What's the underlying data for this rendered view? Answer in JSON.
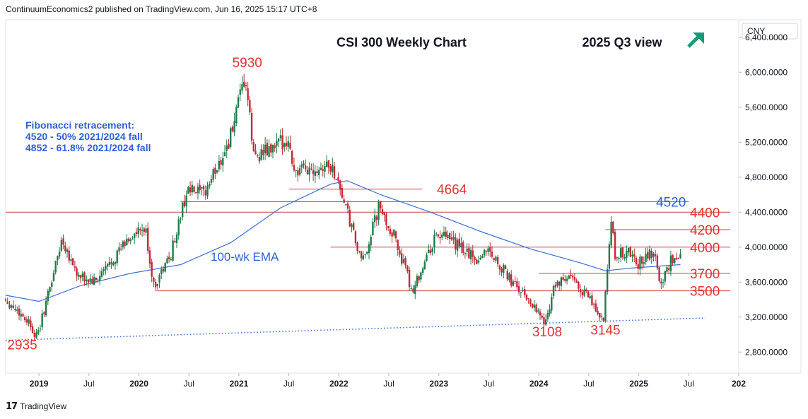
{
  "header": "ContinuumEconomics2 published on TradingView.com, Jun 16, 2025 15:17 UTC+8",
  "footer": {
    "brand": "TradingView"
  },
  "colors": {
    "up": "#1e7b4a",
    "down": "#c22a36",
    "ema": "#3d6fd6",
    "level_line": "#d13a45",
    "level_text": "#e0342f",
    "fib_text": "#2f5ed6",
    "trend": "#3d6fd6",
    "arrow": "#1a9a7a"
  },
  "chart_data": {
    "type": "candlestick",
    "title": "CSI 300 Weekly Chart",
    "subtitle": "2025 Q3 view",
    "currency": "CNY",
    "x_tick_labels": [
      "2019",
      "Jul",
      "2020",
      "Jul",
      "2021",
      "Jul",
      "2022",
      "Jul",
      "2023",
      "Jul",
      "2024",
      "Jul",
      "2025",
      "Jul",
      "202"
    ],
    "x_range": [
      "2018-09",
      "2026-01"
    ],
    "y_tick_labels": [
      "2,800.0000",
      "3,200.0000",
      "3,600.0000",
      "4,000.0000",
      "4,400.0000",
      "4,800.0000",
      "5,200.0000",
      "5,600.0000",
      "6,000.0000",
      "6,400.0000"
    ],
    "ylim": [
      2560,
      6600
    ],
    "price_path": [
      [
        "2018-09",
        3420
      ],
      [
        "2018-12",
        3150
      ],
      [
        "2019-01",
        2960
      ],
      [
        "2019-04",
        4100
      ],
      [
        "2019-06",
        3650
      ],
      [
        "2019-08",
        3600
      ],
      [
        "2019-12",
        4100
      ],
      [
        "2020-02",
        4200
      ],
      [
        "2020-03",
        3550
      ],
      [
        "2020-05",
        3900
      ],
      [
        "2020-07",
        4650
      ],
      [
        "2020-09",
        4600
      ],
      [
        "2020-12",
        5200
      ],
      [
        "2021-02",
        5930
      ],
      [
        "2021-03",
        5050
      ],
      [
        "2021-05",
        5100
      ],
      [
        "2021-07",
        5250
      ],
      [
        "2021-08",
        4850
      ],
      [
        "2021-10",
        4900
      ],
      [
        "2021-12",
        4950
      ],
      [
        "2022-01",
        4800
      ],
      [
        "2022-04",
        3800
      ],
      [
        "2022-06",
        4450
      ],
      [
        "2022-08",
        4100
      ],
      [
        "2022-10",
        3500
      ],
      [
        "2023-01",
        4150
      ],
      [
        "2023-03",
        4050
      ],
      [
        "2023-06",
        3850
      ],
      [
        "2023-07",
        4000
      ],
      [
        "2023-10",
        3600
      ],
      [
        "2024-01",
        3300
      ],
      [
        "2024-02",
        3108
      ],
      [
        "2024-03",
        3550
      ],
      [
        "2024-05",
        3650
      ],
      [
        "2024-07",
        3450
      ],
      [
        "2024-09",
        3145
      ],
      [
        "2024-10",
        4400
      ],
      [
        "2024-10",
        3900
      ],
      [
        "2024-12",
        3950
      ],
      [
        "2025-01",
        3800
      ],
      [
        "2025-03",
        3950
      ],
      [
        "2025-04",
        3550
      ],
      [
        "2025-05",
        3850
      ],
      [
        "2025-06",
        3870
      ]
    ],
    "ema_label": "100-wk EMA",
    "ema_path": [
      [
        "2018-09",
        3450
      ],
      [
        "2019-01",
        3380
      ],
      [
        "2019-06",
        3560
      ],
      [
        "2019-12",
        3700
      ],
      [
        "2020-06",
        3800
      ],
      [
        "2020-12",
        4050
      ],
      [
        "2021-06",
        4450
      ],
      [
        "2021-12",
        4720
      ],
      [
        "2022-02",
        4760
      ],
      [
        "2022-06",
        4600
      ],
      [
        "2022-12",
        4400
      ],
      [
        "2023-06",
        4180
      ],
      [
        "2023-12",
        3980
      ],
      [
        "2024-06",
        3820
      ],
      [
        "2024-09",
        3730
      ],
      [
        "2024-12",
        3760
      ],
      [
        "2025-06",
        3800
      ]
    ],
    "levels": [
      {
        "label": "4664",
        "value": 4664,
        "from": "2021-07",
        "to": "2022-11",
        "label_at": "2022-10"
      },
      {
        "label": "4520",
        "value": 4520,
        "from": "2020-06",
        "to": "2025-07",
        "label_at": "2025-06",
        "color": "fib"
      },
      {
        "label": "4400",
        "value": 4400,
        "from": "2018-09",
        "to": "2025-12",
        "label_at": "2025-09"
      },
      {
        "label": "4200",
        "value": 4200,
        "from": "2024-09",
        "to": "2025-12",
        "label_at": "2025-09"
      },
      {
        "label": "4000",
        "value": 4000,
        "from": "2021-12",
        "to": "2025-12",
        "label_at": "2025-09"
      },
      {
        "label": "3700",
        "value": 3700,
        "from": "2024-01",
        "to": "2025-12",
        "label_at": "2025-09"
      },
      {
        "label": "3500",
        "value": 3500,
        "from": "2020-03",
        "to": "2025-12",
        "label_at": "2025-09"
      }
    ],
    "trendline": {
      "from": [
        "2018-09",
        2935
      ],
      "to": [
        "2025-09",
        3190
      ]
    },
    "annotations": [
      {
        "text": "5930",
        "x": "2021-02",
        "y": 6060,
        "kind": "level"
      },
      {
        "text": "2935",
        "x": "2018-11",
        "y": 2830,
        "kind": "level"
      },
      {
        "text": "3108",
        "x": "2024-02",
        "y": 2980,
        "kind": "level"
      },
      {
        "text": "3145",
        "x": "2024-09",
        "y": 3000,
        "kind": "level"
      }
    ],
    "fib_text": [
      "Fibonacci retracement:",
      "4520 - 50% 2021/2024 fall",
      "4852 - 61.8% 2021/2024 fall"
    ],
    "trend_arrow": "up-right-arrow-icon",
    "grid": false
  }
}
